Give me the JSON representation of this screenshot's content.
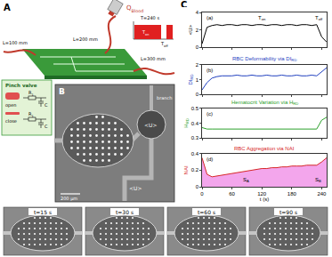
{
  "chart_data": [
    {
      "type": "line",
      "color": "#000000",
      "y_label": {
        "text": "<U>"
      },
      "annotations": [
        {
          "text": "(a)"
        },
        {
          "text": "T",
          "sub": "on"
        },
        {
          "text": "T",
          "sub": "off"
        }
      ],
      "x": [
        0,
        10,
        20,
        30,
        40,
        50,
        60,
        70,
        80,
        90,
        100,
        110,
        120,
        130,
        140,
        150,
        160,
        170,
        180,
        190,
        200,
        210,
        220,
        230,
        240,
        250
      ],
      "values": [
        0.4,
        2.3,
        2.5,
        2.6,
        2.5,
        2.6,
        2.6,
        2.5,
        2.6,
        2.6,
        2.5,
        2.6,
        2.6,
        2.5,
        2.6,
        2.6,
        2.5,
        2.6,
        2.6,
        2.5,
        2.6,
        2.6,
        2.5,
        2.6,
        1.2,
        0.6
      ],
      "xlim": [
        0,
        250
      ],
      "xticks": [
        0,
        60,
        120,
        180,
        240
      ],
      "ylim": [
        0,
        4
      ],
      "yticks": [
        0,
        2,
        4
      ],
      "grid": false,
      "tick_labels": "y"
    },
    {
      "type": "line",
      "color": "#1f3fbf",
      "title": {
        "text": "RBC Deformability via DI",
        "sub": "RD"
      },
      "y_label": {
        "text": "DI",
        "sub": "RD"
      },
      "annotations": [
        {
          "text": "(b)"
        }
      ],
      "x": [
        0,
        10,
        20,
        30,
        40,
        50,
        60,
        70,
        80,
        90,
        100,
        110,
        120,
        130,
        140,
        150,
        160,
        170,
        180,
        190,
        200,
        210,
        220,
        230,
        240,
        250
      ],
      "values": [
        0.3,
        0.8,
        1.1,
        1.2,
        1.25,
        1.25,
        1.25,
        1.3,
        1.25,
        1.25,
        1.3,
        1.25,
        1.25,
        1.3,
        1.25,
        1.25,
        1.3,
        1.25,
        1.25,
        1.3,
        1.25,
        1.25,
        1.3,
        1.25,
        1.5,
        1.8
      ],
      "xlim": [
        0,
        250
      ],
      "xticks": [
        0,
        60,
        120,
        180,
        240
      ],
      "ylim": [
        0,
        2
      ],
      "yticks": [
        0,
        1,
        2
      ],
      "grid": false,
      "tick_labels": "y"
    },
    {
      "type": "line",
      "color": "#2ca02c",
      "title": {
        "text": "Hematocrit Variation via H",
        "sub": "RD"
      },
      "y_label": {
        "text": "H",
        "sub": "RD"
      },
      "annotations": [
        {
          "text": "(c)"
        }
      ],
      "x": [
        0,
        10,
        20,
        30,
        40,
        50,
        60,
        70,
        80,
        90,
        100,
        110,
        120,
        130,
        140,
        150,
        160,
        170,
        180,
        190,
        200,
        210,
        220,
        230,
        240,
        250
      ],
      "values": [
        0.37,
        0.36,
        0.36,
        0.36,
        0.36,
        0.36,
        0.36,
        0.36,
        0.36,
        0.36,
        0.36,
        0.36,
        0.36,
        0.36,
        0.36,
        0.36,
        0.36,
        0.36,
        0.36,
        0.36,
        0.36,
        0.36,
        0.36,
        0.36,
        0.42,
        0.44
      ],
      "xlim": [
        0,
        250
      ],
      "xticks": [
        0,
        60,
        120,
        180,
        240
      ],
      "ylim": [
        0.3,
        0.5
      ],
      "yticks": [
        0.3,
        0.4,
        0.5
      ],
      "grid": false,
      "tick_labels": "y"
    },
    {
      "type": "area",
      "color": "#d62728",
      "title": {
        "text": "RBC Aggregation via NAI"
      },
      "y_label": {
        "text": "NAI"
      },
      "x_label": {
        "text": "t (s)"
      },
      "annotations": [
        {
          "text": "(d)"
        },
        {
          "text": "S",
          "sub": "A"
        },
        {
          "text": "S",
          "sub": "B"
        }
      ],
      "x": [
        0,
        10,
        20,
        30,
        40,
        50,
        60,
        70,
        80,
        90,
        100,
        110,
        120,
        130,
        140,
        150,
        160,
        170,
        180,
        190,
        200,
        210,
        220,
        230,
        240,
        250
      ],
      "values": [
        0.35,
        0.15,
        0.12,
        0.13,
        0.14,
        0.15,
        0.16,
        0.17,
        0.18,
        0.19,
        0.2,
        0.21,
        0.22,
        0.22,
        0.23,
        0.23,
        0.24,
        0.24,
        0.25,
        0.25,
        0.25,
        0.26,
        0.26,
        0.26,
        0.3,
        0.35
      ],
      "xlim": [
        0,
        250
      ],
      "xticks": [
        0,
        60,
        120,
        180,
        240
      ],
      "ylim": [
        0,
        0.4
      ],
      "yticks": [
        0,
        0.2,
        0.4
      ],
      "grid": false
    }
  ],
  "panel_C": "C",
  "schematic": {
    "label": "A",
    "flow": {
      "text": "Q",
      "sub": "Blood"
    },
    "period": "T=240 s",
    "on": {
      "text": "T",
      "sub": "on"
    },
    "off": {
      "text": "T",
      "sub": "off"
    },
    "tubes": [
      "L=200 mm",
      "L=300 mm",
      "L=100 mm"
    ],
    "valve": {
      "title": "Pinch valve",
      "states": [
        "open",
        "close"
      ],
      "resistor": {
        "text": "R",
        "sub": "1"
      },
      "capacitor": "C"
    }
  },
  "image": {
    "label": "B",
    "velocity_labels": [
      "<U>",
      "<U>"
    ],
    "branch": "branch",
    "scale": "200 μm"
  },
  "snapshots": [
    "t=15 s",
    "t=30 s",
    "t=60 s",
    "t=90 s"
  ]
}
